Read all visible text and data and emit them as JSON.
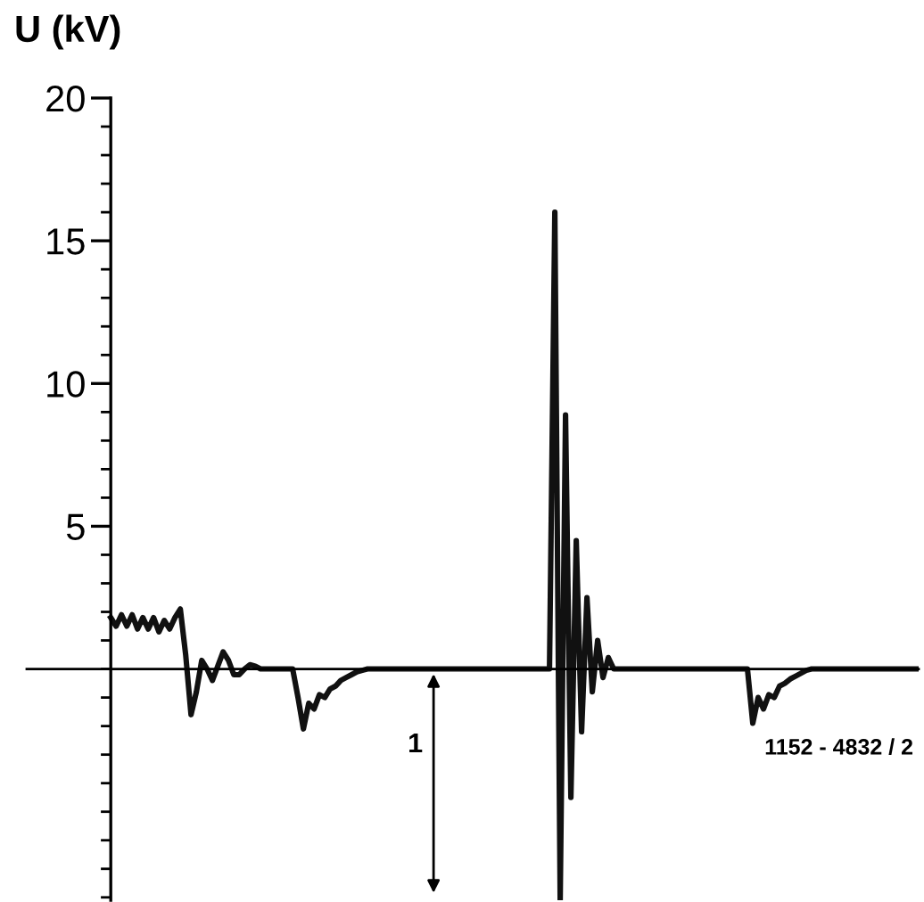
{
  "chart_data": {
    "type": "line",
    "ylabel": "U (kV)",
    "categories": [
      null,
      null,
      null,
      null,
      null,
      null,
      null,
      null,
      null,
      null,
      null,
      null,
      null,
      null,
      null,
      null,
      null,
      null,
      null,
      null,
      null,
      null,
      null,
      null,
      null,
      null,
      null,
      null,
      null,
      null,
      null,
      null,
      null,
      null,
      null,
      null,
      null,
      null,
      null,
      null,
      null,
      null,
      null,
      null,
      null,
      null,
      null,
      null,
      null,
      null,
      null,
      null,
      null,
      null,
      null,
      null,
      null,
      null,
      null,
      null,
      null,
      null,
      null,
      null,
      null,
      null,
      null,
      null,
      null,
      null,
      null,
      null,
      null,
      null,
      null,
      null,
      null,
      null,
      null,
      null,
      null,
      null,
      null,
      null,
      null,
      null,
      null,
      null,
      null,
      null,
      null,
      null,
      null,
      null,
      null,
      null,
      null,
      null,
      null,
      null,
      null,
      null,
      null,
      null,
      null,
      null,
      null,
      null,
      null,
      null,
      null,
      null,
      null,
      null,
      null,
      null,
      null,
      null,
      null,
      null,
      null,
      null,
      null,
      null,
      null,
      null,
      null,
      null,
      null,
      null,
      null,
      null,
      null,
      null,
      null,
      null,
      null,
      null,
      null,
      null,
      null,
      null,
      null,
      null,
      null,
      null,
      null,
      null,
      null,
      null,
      null,
      null
    ],
    "series": [
      {
        "color": "#111111",
        "values": [
          1.8,
          1.5,
          1.9,
          1.5,
          1.9,
          1.4,
          1.8,
          1.4,
          1.8,
          1.3,
          1.7,
          1.4,
          1.8,
          2.1,
          0.5,
          -1.6,
          -0.8,
          0.3,
          0.0,
          -0.4,
          0.1,
          0.6,
          0.3,
          -0.2,
          -0.2,
          0.0,
          0.15,
          0.1,
          0,
          0,
          0,
          0,
          0,
          0,
          0,
          -1.0,
          -2.1,
          -1.2,
          -1.4,
          -0.9,
          -1.0,
          -0.7,
          -0.6,
          -0.4,
          -0.3,
          -0.2,
          -0.1,
          -0.05,
          0,
          0,
          0,
          0,
          0,
          0,
          0,
          0,
          0,
          0,
          0,
          0,
          0,
          0,
          0,
          0,
          0,
          0,
          0,
          0,
          0,
          0,
          0,
          0,
          0,
          0,
          0,
          0,
          0,
          0,
          0,
          0,
          0,
          0,
          0,
          16,
          -8.1,
          8.9,
          -4.5,
          4.5,
          -2.2,
          2.5,
          -0.8,
          1.0,
          -0.3,
          0.4,
          0,
          0,
          0,
          0,
          0,
          0,
          0,
          0,
          0,
          0,
          0,
          0,
          0,
          0,
          0,
          0,
          0,
          0,
          0,
          0,
          0,
          0,
          0,
          0,
          0,
          0,
          -1.9,
          -1.0,
          -1.4,
          -0.9,
          -1.0,
          -0.6,
          -0.5,
          -0.35,
          -0.25,
          -0.15,
          -0.05,
          0,
          0,
          0,
          0,
          0,
          0,
          0,
          0,
          0,
          0,
          0,
          0,
          0,
          0,
          0,
          0,
          0,
          0,
          0,
          0,
          0
        ]
      }
    ],
    "ylim": [
      -8.1,
      20
    ],
    "yticks": [
      5,
      10,
      15,
      20
    ],
    "annotations": [
      "1",
      "1152 - 4832 / 2"
    ],
    "grid": false,
    "legend": false,
    "marker": "none",
    "line_style": "solid"
  }
}
